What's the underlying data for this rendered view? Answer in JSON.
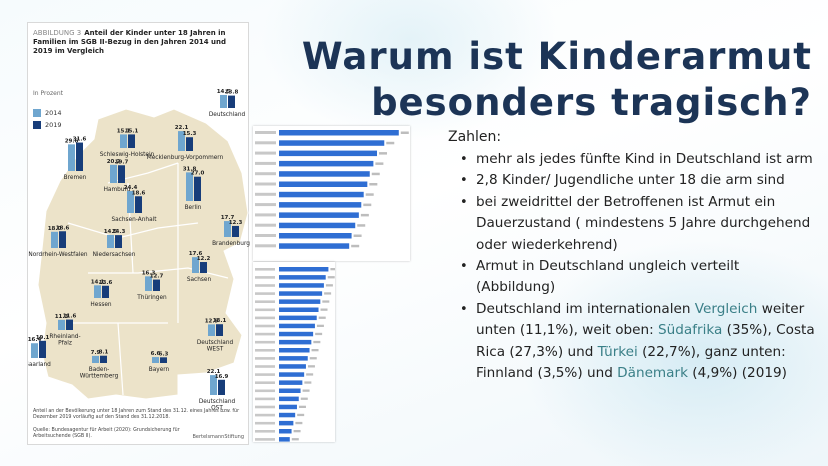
{
  "slide": {
    "title_line1": "Warum ist Kinderarmut",
    "title_line2": "besonders tragisch?",
    "intro": "Zahlen:",
    "bullets": [
      {
        "text": "mehr als jedes fünfte Kind in Deutschland ist arm"
      },
      {
        "text": "2,8 Kinder/ Jugendliche unter 18 die arm sind"
      },
      {
        "text": "bei zweidrittel der Betroffenen ist Armut ein Dauerzustand ( mindestens 5 Jahre durchgehend oder wiederkehrend)"
      },
      {
        "text": "Armut in Deutschland ungleich verteilt (Abbildung)"
      }
    ],
    "bullet5": {
      "p1": "Deutschland im internationalen ",
      "a1": "Vergleich",
      "p2": " weiter unten (11,1%), weit oben: ",
      "a2": "Südafrika",
      "p3": " (35%), Costa Rica (27,3%) und ",
      "a3": "Türkei",
      "p4": " (22,7%), ganz unten: Finnland (3,5%) und ",
      "a4": "Dänemark",
      "p5": " (4,9%)  (2019)"
    },
    "colors": {
      "title": "#1c3456",
      "accent": "#3a7f87",
      "bar2014": "#6fa6cf",
      "bar2019": "#173d7a",
      "intl_bar": "#2f6ed3"
    }
  },
  "figure": {
    "label": "ABBILDUNG 3",
    "heading": "Anteil der Kinder unter 18 Jahren in Familien im SGB II-Bezug in den Jahren 2014 und 2019 im Vergleich",
    "unit": "In Prozent",
    "legend": [
      "2014",
      "2019"
    ],
    "note": "Anteil an der Bevölkerung unter 18 Jahren zum Stand des 31.12. eines Jahres bzw. für Dezember 2019 vorläufig auf den Stand des 31.12.2018.",
    "source": "Quelle: Bundesagentur für Arbeit (2020): Grundsicherung für Arbeitsuchende (SGB II).",
    "logo": "BertelsmannStiftung"
  },
  "chart_data": [
    {
      "type": "bar",
      "title": "Anteil der Kinder unter 18 Jahren in Familien im SGB II-Bezug in den Jahren 2014 und 2019 im Vergleich",
      "ylabel": "In Prozent",
      "categories": [
        "Deutschland",
        "Schleswig-Holstein",
        "Mecklenburg-Vorpommern",
        "Bremen",
        "Hamburg",
        "Berlin",
        "Brandenburg",
        "Sachsen-Anhalt",
        "Niedersachsen",
        "Nordrhein-Westfalen",
        "Thüringen",
        "Sachsen",
        "Hessen",
        "Rheinland-Pfalz",
        "Saarland",
        "Deutschland WEST",
        "Baden-Württemberg",
        "Bayern",
        "Deutschland OST"
      ],
      "label_lines": [
        [
          "Deutschland"
        ],
        [
          "Schleswig-Holstein"
        ],
        [
          "Mecklenburg-Vorpommern"
        ],
        [
          "Bremen"
        ],
        [
          "Hamburg"
        ],
        [
          "Berlin"
        ],
        [
          "Brandenburg"
        ],
        [
          "Sachsen-Anhalt"
        ],
        [
          "Niedersachsen"
        ],
        [
          "Nordrhein-Westfalen"
        ],
        [
          "Thüringen"
        ],
        [
          "Sachsen"
        ],
        [
          "Hessen"
        ],
        [
          "Rheinland-",
          "Pfalz"
        ],
        [
          "Saarland"
        ],
        [
          "Deutschland",
          "WEST"
        ],
        [
          "Baden-",
          "Württemberg"
        ],
        [
          "Bayern"
        ],
        [
          "Deutschland",
          "OST"
        ]
      ],
      "series": [
        {
          "name": "2014",
          "values": [
            14.5,
            15.1,
            22.1,
            29.6,
            20.2,
            31.8,
            17.7,
            24.4,
            14.5,
            18.0,
            16.3,
            17.6,
            14.1,
            11.3,
            16.4,
            12.9,
            7.9,
            6.6,
            22.1
          ]
        },
        {
          "name": "2019",
          "values": [
            13.8,
            15.1,
            15.3,
            31.6,
            19.7,
            27.0,
            12.3,
            18.6,
            14.3,
            18.6,
            12.7,
            12.2,
            13.6,
            11.6,
            19.1,
            13.1,
            8.1,
            6.3,
            16.9
          ]
        }
      ]
    },
    {
      "type": "bar",
      "orientation": "horizontal",
      "values": [
        0.99,
        0.87,
        0.81,
        0.78,
        0.75,
        0.73,
        0.7,
        0.68,
        0.66,
        0.63,
        0.6,
        0.58,
        0.55,
        0.52,
        0.5,
        0.48,
        0.46,
        0.44,
        0.42,
        0.4,
        0.38,
        0.36,
        0.34,
        0.32,
        0.3,
        0.28,
        0.26,
        0.24,
        0.22,
        0.2,
        0.18,
        0.16,
        0.14,
        0.12
      ]
    }
  ]
}
